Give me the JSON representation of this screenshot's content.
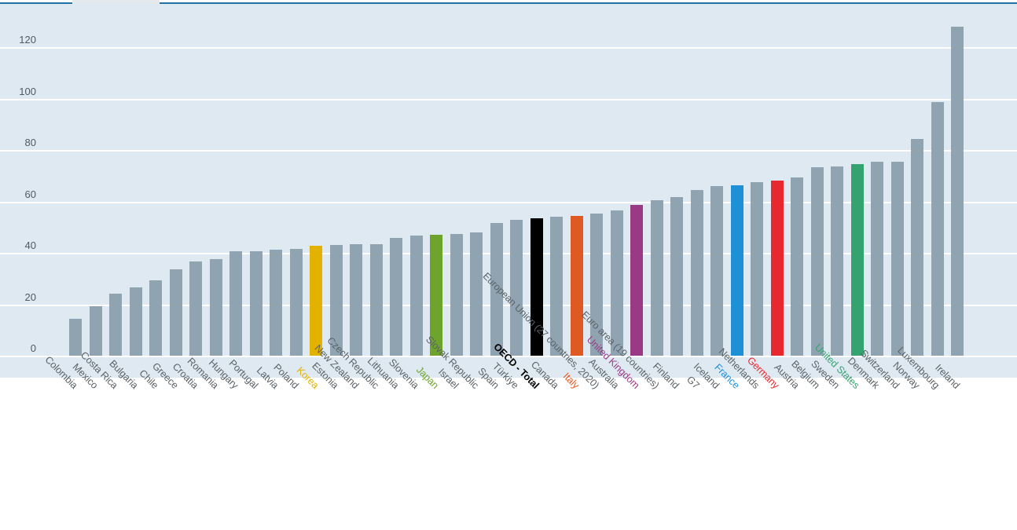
{
  "window": {
    "top_border_color": "#1f72a4",
    "tab_notch_color": "#e4e9ed",
    "background": "#ffffff"
  },
  "chart_data": {
    "type": "bar",
    "title": "",
    "xlabel": "",
    "ylabel": "",
    "ylim": [
      0,
      130
    ],
    "yticks": [
      0,
      20,
      40,
      60,
      80,
      100,
      120
    ],
    "grid": true,
    "legend": false,
    "plot_background": "#dee9f1",
    "gridline_color": "#ffffff",
    "default_bar_color": "#8fa3b1",
    "axis_tick_color": "#4d5a64",
    "category_label_color": "#5b6267",
    "categories": [
      "Colombia",
      "Mexico",
      "Costa Rica",
      "Bulgaria",
      "Chile",
      "Greece",
      "Croatia",
      "Romania",
      "Hungary",
      "Portugal",
      "Latvia",
      "Poland",
      "Korea",
      "Estonia",
      "New Zealand",
      "Czech Republic",
      "Lithuania",
      "Slovenia",
      "Japan",
      "Israel",
      "Slovak Republic",
      "Spain",
      "Türkiye",
      "OECD - Total",
      "Canada",
      "Italy",
      "European Union (27 countries, 2020)",
      "Australia",
      "United Kingdom",
      "Euro area (19 countries)",
      "Finland",
      "G7",
      "Iceland",
      "France",
      "Netherlands",
      "Germany",
      "Austria",
      "Belgium",
      "Sweden",
      "United States",
      "Denmark",
      "Switzerland",
      "Norway",
      "Luxembourg",
      "Ireland"
    ],
    "values": [
      14.5,
      19.4,
      24.1,
      26.6,
      29.2,
      33.7,
      36.8,
      37.6,
      40.5,
      40.8,
      41.4,
      41.6,
      42.9,
      43.0,
      43.3,
      43.4,
      45.8,
      46.8,
      47.2,
      47.4,
      48.1,
      51.8,
      53.0,
      53.4,
      54.0,
      54.5,
      55.2,
      56.5,
      58.7,
      60.6,
      61.6,
      64.6,
      65.9,
      66.4,
      67.5,
      68.1,
      69.5,
      73.3,
      73.6,
      74.6,
      75.4,
      75.6,
      84.3,
      98.7,
      127.9
    ],
    "highlight_colors": {
      "Korea": "#e3b200",
      "Japan": "#6fa42c",
      "OECD - Total": "#000000",
      "Italy": "#de5a22",
      "United Kingdom": "#9a3a85",
      "France": "#1d90d6",
      "Germany": "#e7282f",
      "United States": "#35a36f"
    },
    "bold_categories": [
      "OECD - Total"
    ]
  }
}
